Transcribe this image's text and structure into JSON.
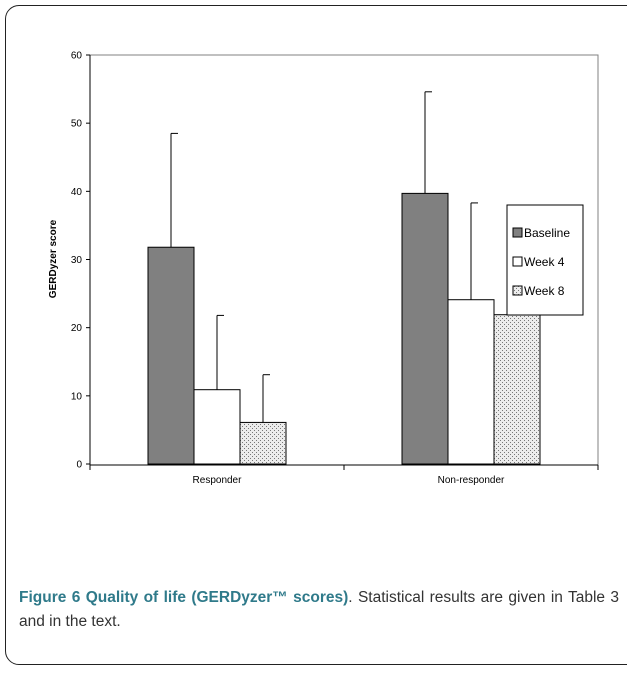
{
  "chart_data": {
    "type": "bar",
    "categories": [
      "Responder",
      "Non-responder"
    ],
    "series": [
      {
        "name": "Baseline",
        "values": [
          31.8,
          39.7
        ],
        "error": [
          16.7,
          14.9
        ],
        "color": "#808080",
        "pattern": "solid"
      },
      {
        "name": "Week 4",
        "values": [
          10.9,
          24.1
        ],
        "error": [
          10.9,
          14.2
        ],
        "color": "#ffffff",
        "pattern": "solid"
      },
      {
        "name": "Week 8",
        "values": [
          6.1,
          21.9
        ],
        "error": [
          7.0,
          13.5
        ],
        "color": "#d8d8d8",
        "pattern": "dotted"
      }
    ],
    "ylabel": "GERDyzer score",
    "xlabel": "",
    "ylim": [
      0,
      60
    ],
    "yticks": [
      0,
      10,
      20,
      30,
      40,
      50,
      60
    ],
    "legend_position": "right",
    "grid": false
  },
  "caption": {
    "figure_label": "Figure 6 Quality of life (GERDyzer™ scores)",
    "text": ". Statistical results are given in Table 3 and in the text."
  }
}
